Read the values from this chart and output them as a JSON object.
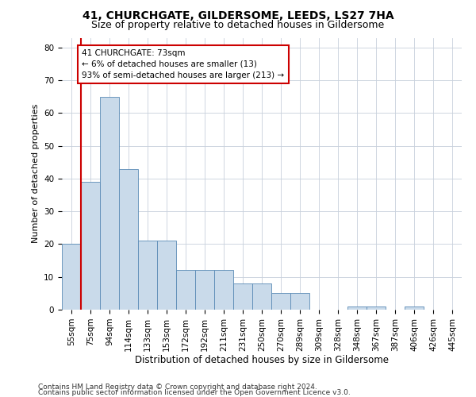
{
  "title1": "41, CHURCHGATE, GILDERSOME, LEEDS, LS27 7HA",
  "title2": "Size of property relative to detached houses in Gildersome",
  "xlabel": "Distribution of detached houses by size in Gildersome",
  "ylabel": "Number of detached properties",
  "categories": [
    "55sqm",
    "75sqm",
    "94sqm",
    "114sqm",
    "133sqm",
    "153sqm",
    "172sqm",
    "192sqm",
    "211sqm",
    "231sqm",
    "250sqm",
    "270sqm",
    "289sqm",
    "309sqm",
    "328sqm",
    "348sqm",
    "367sqm",
    "387sqm",
    "406sqm",
    "426sqm",
    "445sqm"
  ],
  "values": [
    20,
    39,
    65,
    43,
    21,
    21,
    12,
    12,
    12,
    8,
    8,
    5,
    5,
    0,
    0,
    1,
    1,
    0,
    1,
    0,
    0
  ],
  "bar_color": "#c9daea",
  "bar_edge_color": "#5a8ab5",
  "grid_color": "#c8d0dc",
  "annotation_line1": "41 CHURCHGATE: 73sqm",
  "annotation_line2": "← 6% of detached houses are smaller (13)",
  "annotation_line3": "93% of semi-detached houses are larger (213) →",
  "annotation_box_color": "#ffffff",
  "annotation_box_edge_color": "#cc0000",
  "vline_x": 0.5,
  "vline_color": "#cc0000",
  "ylim": [
    0,
    83
  ],
  "yticks": [
    0,
    10,
    20,
    30,
    40,
    50,
    60,
    70,
    80
  ],
  "footnote1": "Contains HM Land Registry data © Crown copyright and database right 2024.",
  "footnote2": "Contains public sector information licensed under the Open Government Licence v3.0.",
  "title1_fontsize": 10,
  "title2_fontsize": 9,
  "xlabel_fontsize": 8.5,
  "ylabel_fontsize": 8,
  "tick_fontsize": 7.5,
  "annot_fontsize": 7.5,
  "footnote_fontsize": 6.5
}
